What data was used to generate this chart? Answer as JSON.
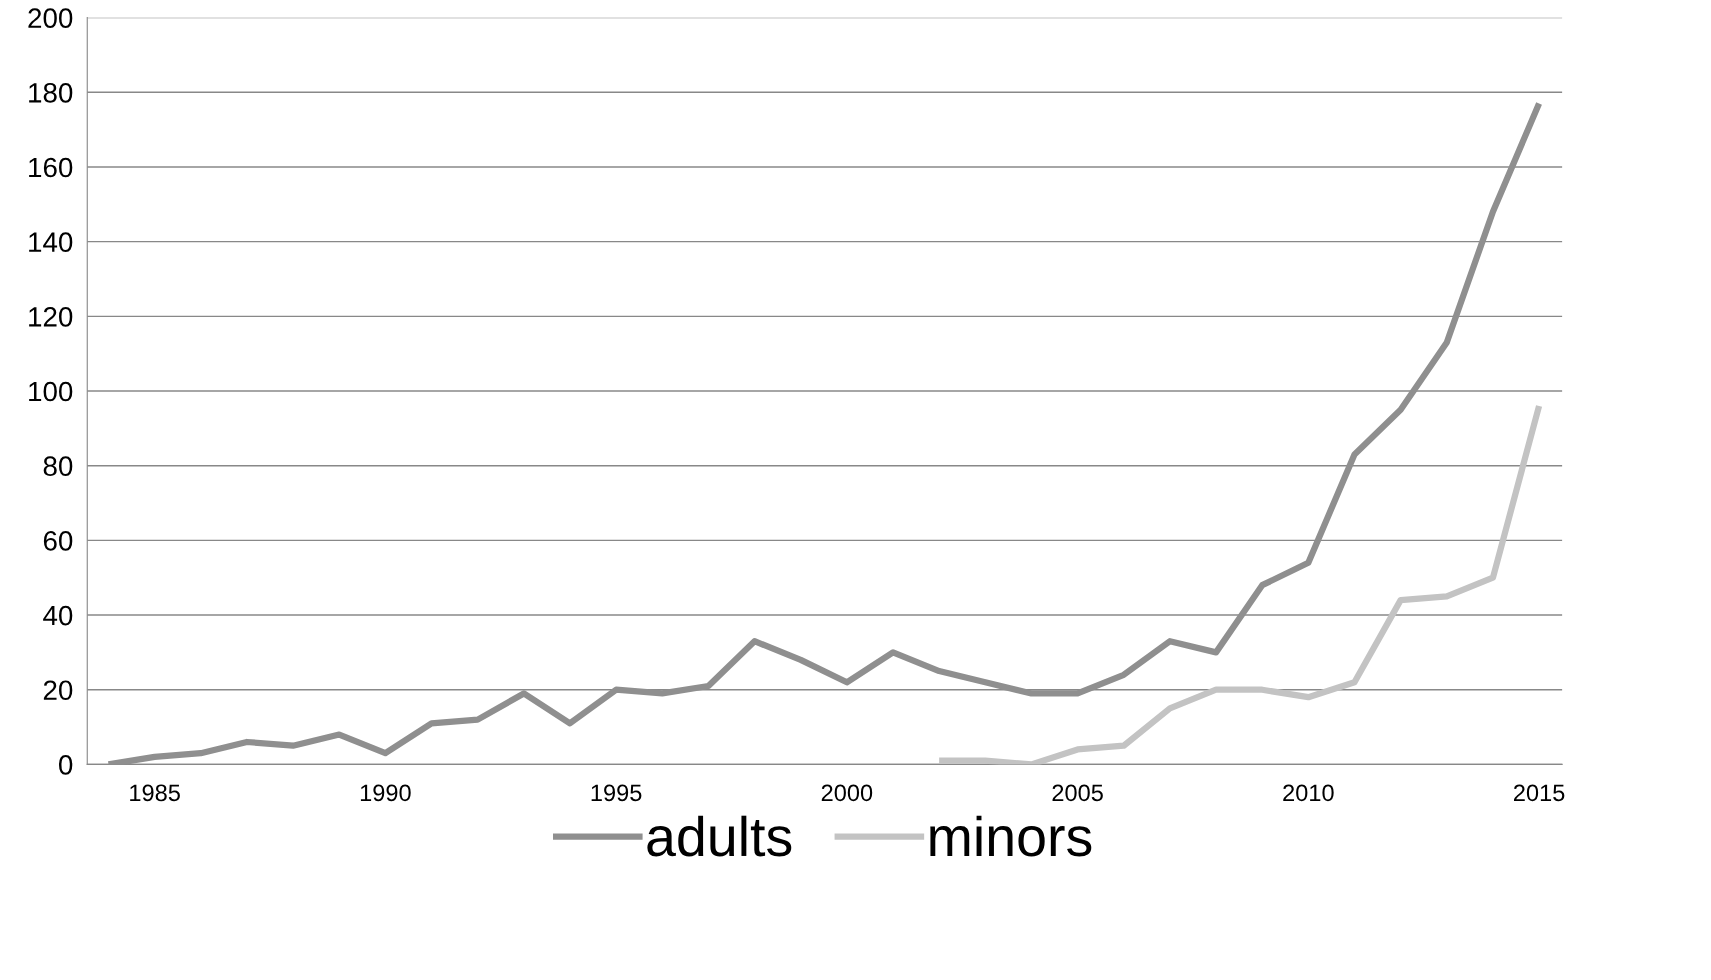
{
  "chart_data": {
    "type": "line",
    "categories": [
      null,
      "1985",
      null,
      null,
      null,
      null,
      "1990",
      null,
      null,
      null,
      null,
      "1995",
      null,
      null,
      null,
      null,
      "2000",
      null,
      null,
      null,
      null,
      "2005",
      null,
      null,
      null,
      null,
      "2010",
      null,
      null,
      null,
      null,
      "2015"
    ],
    "series": [
      {
        "name": "adults",
        "color": "#8f8f8f",
        "values": [
          0,
          2,
          3,
          6,
          5,
          8,
          3,
          11,
          12,
          19,
          11,
          20,
          19,
          21,
          33,
          28,
          22,
          30,
          25,
          22,
          19,
          19,
          24,
          33,
          30,
          48,
          54,
          83,
          95,
          113,
          148,
          177
        ]
      },
      {
        "name": "minors",
        "color": "#c3c3c3",
        "values": [
          null,
          null,
          null,
          null,
          null,
          null,
          null,
          null,
          null,
          null,
          null,
          null,
          null,
          null,
          null,
          null,
          null,
          null,
          1,
          1,
          0,
          4,
          5,
          15,
          20,
          20,
          18,
          22,
          44,
          45,
          50,
          96
        ]
      }
    ],
    "ylim": [
      0,
      200
    ],
    "yticks": [
      0,
      20,
      40,
      60,
      80,
      100,
      120,
      140,
      160,
      180,
      200
    ],
    "grid": "y",
    "legend": "bottom",
    "marker": "none",
    "line_style": "solid"
  }
}
